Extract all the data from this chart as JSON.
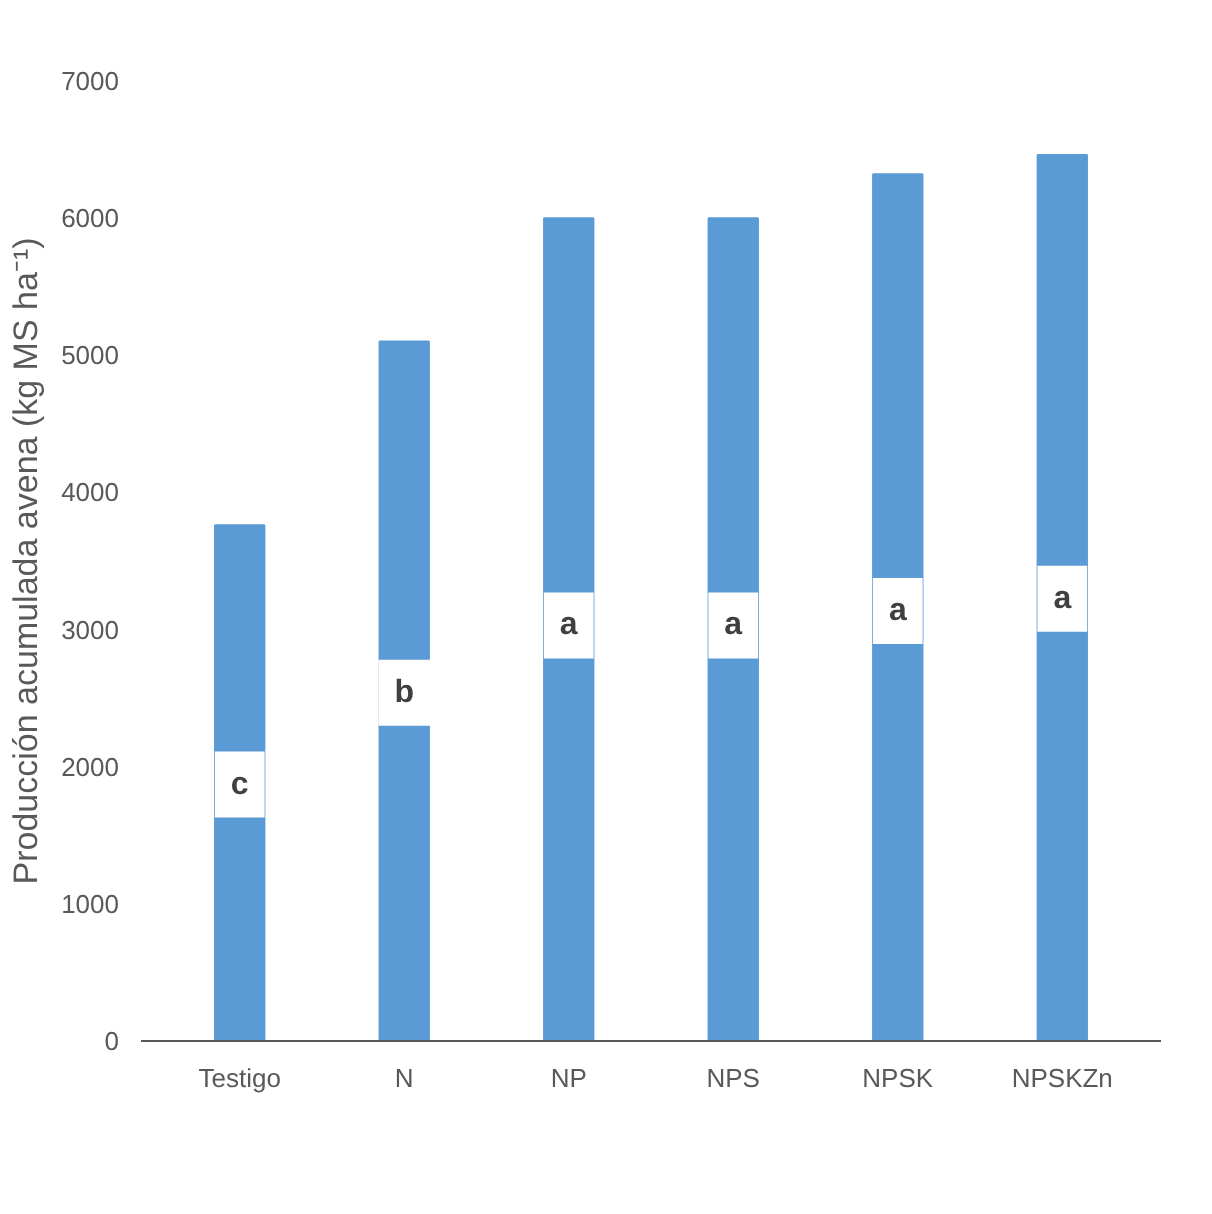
{
  "chart_data": {
    "type": "bar",
    "ylabel": "Producción acumulada avena (kg MS ha⁻¹)",
    "categories": [
      "Testigo",
      "N",
      "NP",
      "NPS",
      "NPSK",
      "NPSKZn"
    ],
    "values": [
      3760,
      5100,
      6000,
      6000,
      6320,
      6460
    ],
    "color": "#5b9bd5",
    "ylim": [
      0,
      7000
    ],
    "yticks": [
      0,
      1000,
      2000,
      3000,
      4000,
      5000,
      6000,
      7000
    ],
    "annotations": [
      {
        "text": "c",
        "x": "Testigo",
        "y": 1870
      },
      {
        "text": "b",
        "x": "N",
        "y": 2540
      },
      {
        "text": "a",
        "x": "NP",
        "y": 3030
      },
      {
        "text": "a",
        "x": "NPS",
        "y": 3030
      },
      {
        "text": "a",
        "x": "NPSK",
        "y": 3135
      },
      {
        "text": "a",
        "x": "NPSKZn",
        "y": 3225
      }
    ]
  }
}
